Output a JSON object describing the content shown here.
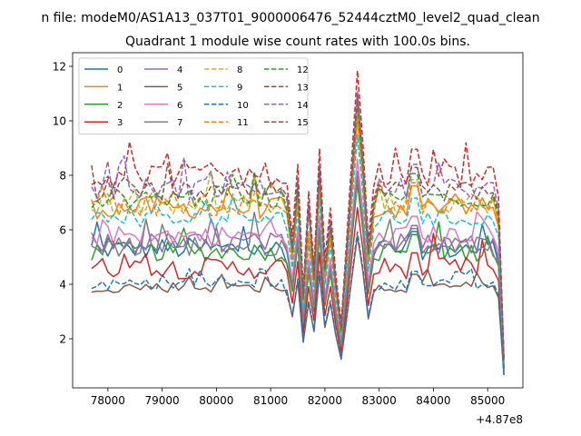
{
  "figure": {
    "suptitle": "n file: modeM0/AS1A13_037T01_9000006476_52444cztM0_level2_quad_clean"
  },
  "chart_data": {
    "type": "line",
    "title": "Quadrant 1 module wise count rates with 100.0s bins.",
    "xlabel": "",
    "ylabel": "",
    "x_offset_label": "+4.87e8",
    "xlim": [
      77350,
      85650
    ],
    "ylim": [
      0.2,
      12.5
    ],
    "xticks": [
      78000,
      79000,
      80000,
      81000,
      82000,
      83000,
      84000,
      85000
    ],
    "xtick_labels": [
      "78000",
      "79000",
      "80000",
      "81000",
      "82000",
      "83000",
      "84000",
      "85000"
    ],
    "yticks": [
      2,
      4,
      6,
      8,
      10,
      12
    ],
    "ytick_labels": [
      "2",
      "4",
      "6",
      "8",
      "10",
      "12"
    ],
    "grid": false,
    "legend": {
      "placement": "top-left",
      "columns": 4
    },
    "x": {
      "start": 77700,
      "step": 100,
      "dip_times": [
        81300,
        81600,
        82300,
        82600,
        82800,
        83600,
        85300
      ]
    },
    "series": [
      {
        "name": "0",
        "color": "#1f77b4",
        "dash": "solid",
        "base": 5.3,
        "jitter": 0.4
      },
      {
        "name": "1",
        "color": "#ff7f0e",
        "dash": "solid",
        "base": 6.8,
        "jitter": 0.4
      },
      {
        "name": "2",
        "color": "#2ca02c",
        "dash": "solid",
        "base": 5.2,
        "jitter": 0.35
      },
      {
        "name": "3",
        "color": "#d62728",
        "dash": "solid",
        "base": 4.6,
        "jitter": 0.4
      },
      {
        "name": "4",
        "color": "#9467bd",
        "dash": "solid",
        "base": 5.5,
        "jitter": 0.4
      },
      {
        "name": "5",
        "color": "#8c564b",
        "dash": "solid",
        "base": 3.9,
        "jitter": 0.2
      },
      {
        "name": "6",
        "color": "#e377c2",
        "dash": "solid",
        "base": 5.8,
        "jitter": 0.35
      },
      {
        "name": "7",
        "color": "#7f7f7f",
        "dash": "solid",
        "base": 5.4,
        "jitter": 0.4
      },
      {
        "name": "8",
        "color": "#bcbd22",
        "dash": "dashed",
        "base": 7.0,
        "jitter": 0.4
      },
      {
        "name": "9",
        "color": "#17becf",
        "dash": "dashed",
        "base": 6.4,
        "jitter": 0.3
      },
      {
        "name": "10",
        "color": "#1f77b4",
        "dash": "dashed",
        "base": 4.0,
        "jitter": 0.2
      },
      {
        "name": "11",
        "color": "#ff7f0e",
        "dash": "dashed",
        "base": 6.9,
        "jitter": 0.4
      },
      {
        "name": "12",
        "color": "#2ca02c",
        "dash": "dashed",
        "base": 7.2,
        "jitter": 0.4
      },
      {
        "name": "13",
        "color": "#d62728",
        "dash": "dashed",
        "base": 8.0,
        "jitter": 0.45
      },
      {
        "name": "14",
        "color": "#9467bd",
        "dash": "dashed",
        "base": 7.5,
        "jitter": 0.4
      },
      {
        "name": "15",
        "color": "#8c564b",
        "dash": "dashed",
        "base": 7.4,
        "jitter": 0.35
      }
    ]
  }
}
